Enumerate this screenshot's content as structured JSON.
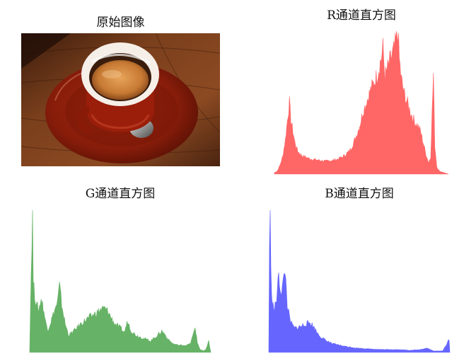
{
  "panels": {
    "original": {
      "title": "原始图像"
    },
    "red": {
      "title": "R通道直方图"
    },
    "green": {
      "title": "G通道直方图"
    },
    "blue": {
      "title": "B通道直方图"
    }
  },
  "colors": {
    "red": "#ff6666",
    "green": "#66b266",
    "blue": "#6666ff"
  },
  "chart_data": [
    {
      "type": "area",
      "title": "R通道直方图",
      "xlim": [
        0,
        255
      ],
      "points": [
        [
          0,
          0.01
        ],
        [
          4,
          0.02
        ],
        [
          8,
          0.06
        ],
        [
          12,
          0.12
        ],
        [
          16,
          0.24
        ],
        [
          20,
          0.42
        ],
        [
          22,
          0.5
        ],
        [
          24,
          0.38
        ],
        [
          27,
          0.3
        ],
        [
          30,
          0.22
        ],
        [
          34,
          0.16
        ],
        [
          40,
          0.13
        ],
        [
          50,
          0.11
        ],
        [
          60,
          0.1
        ],
        [
          75,
          0.09
        ],
        [
          90,
          0.1
        ],
        [
          100,
          0.12
        ],
        [
          110,
          0.16
        ],
        [
          118,
          0.24
        ],
        [
          125,
          0.34
        ],
        [
          130,
          0.44
        ],
        [
          136,
          0.52
        ],
        [
          142,
          0.6
        ],
        [
          148,
          0.66
        ],
        [
          152,
          0.72
        ],
        [
          156,
          0.8
        ],
        [
          159,
          0.88
        ],
        [
          162,
          0.68
        ],
        [
          166,
          0.74
        ],
        [
          170,
          0.8
        ],
        [
          175,
          0.86
        ],
        [
          179,
          0.94
        ],
        [
          181,
          1.0
        ],
        [
          183,
          0.8
        ],
        [
          186,
          0.66
        ],
        [
          190,
          0.56
        ],
        [
          196,
          0.48
        ],
        [
          202,
          0.4
        ],
        [
          206,
          0.36
        ],
        [
          210,
          0.34
        ],
        [
          214,
          0.3
        ],
        [
          218,
          0.22
        ],
        [
          222,
          0.14
        ],
        [
          226,
          0.08
        ],
        [
          229,
          0.12
        ],
        [
          231,
          0.42
        ],
        [
          233,
          0.7
        ],
        [
          235,
          0.2
        ],
        [
          238,
          0.05
        ],
        [
          242,
          0.02
        ],
        [
          255,
          0.0
        ]
      ]
    },
    {
      "type": "area",
      "title": "G通道直方图",
      "xlim": [
        0,
        255
      ],
      "points": [
        [
          0,
          0.02
        ],
        [
          2,
          0.55
        ],
        [
          4,
          1.0
        ],
        [
          5,
          0.5
        ],
        [
          7,
          0.4
        ],
        [
          10,
          0.33
        ],
        [
          13,
          0.3
        ],
        [
          16,
          0.38
        ],
        [
          19,
          0.32
        ],
        [
          22,
          0.22
        ],
        [
          26,
          0.16
        ],
        [
          30,
          0.22
        ],
        [
          34,
          0.28
        ],
        [
          39,
          0.35
        ],
        [
          42,
          0.47
        ],
        [
          45,
          0.34
        ],
        [
          50,
          0.2
        ],
        [
          55,
          0.12
        ],
        [
          62,
          0.15
        ],
        [
          72,
          0.2
        ],
        [
          82,
          0.24
        ],
        [
          92,
          0.27
        ],
        [
          100,
          0.3
        ],
        [
          105,
          0.31
        ],
        [
          110,
          0.29
        ],
        [
          115,
          0.24
        ],
        [
          120,
          0.2
        ],
        [
          128,
          0.17
        ],
        [
          133,
          0.14
        ],
        [
          138,
          0.22
        ],
        [
          143,
          0.15
        ],
        [
          150,
          0.12
        ],
        [
          160,
          0.1
        ],
        [
          170,
          0.08
        ],
        [
          180,
          0.12
        ],
        [
          186,
          0.15
        ],
        [
          190,
          0.13
        ],
        [
          195,
          0.09
        ],
        [
          202,
          0.06
        ],
        [
          210,
          0.05
        ],
        [
          220,
          0.05
        ],
        [
          226,
          0.06
        ],
        [
          230,
          0.12
        ],
        [
          233,
          0.18
        ],
        [
          236,
          0.07
        ],
        [
          240,
          0.02
        ],
        [
          245,
          0.01
        ],
        [
          248,
          0.02
        ],
        [
          252,
          0.08
        ],
        [
          255,
          0.0
        ]
      ]
    },
    {
      "type": "area",
      "title": "B通道直方图",
      "xlim": [
        0,
        255
      ],
      "points": [
        [
          0,
          0.02
        ],
        [
          1,
          0.8
        ],
        [
          2,
          1.0
        ],
        [
          3,
          0.55
        ],
        [
          5,
          0.35
        ],
        [
          8,
          0.3
        ],
        [
          11,
          0.38
        ],
        [
          14,
          0.54
        ],
        [
          17,
          0.42
        ],
        [
          20,
          0.48
        ],
        [
          23,
          0.58
        ],
        [
          26,
          0.34
        ],
        [
          30,
          0.22
        ],
        [
          36,
          0.17
        ],
        [
          44,
          0.18
        ],
        [
          52,
          0.2
        ],
        [
          58,
          0.21
        ],
        [
          62,
          0.19
        ],
        [
          68,
          0.14
        ],
        [
          75,
          0.1
        ],
        [
          82,
          0.08
        ],
        [
          90,
          0.06
        ],
        [
          100,
          0.05
        ],
        [
          110,
          0.04
        ],
        [
          125,
          0.03
        ],
        [
          140,
          0.025
        ],
        [
          160,
          0.02
        ],
        [
          180,
          0.02
        ],
        [
          200,
          0.015
        ],
        [
          215,
          0.02
        ],
        [
          222,
          0.03
        ],
        [
          226,
          0.025
        ],
        [
          232,
          0.01
        ],
        [
          245,
          0.01
        ],
        [
          254,
          0.09
        ],
        [
          255,
          0.0
        ]
      ]
    }
  ]
}
